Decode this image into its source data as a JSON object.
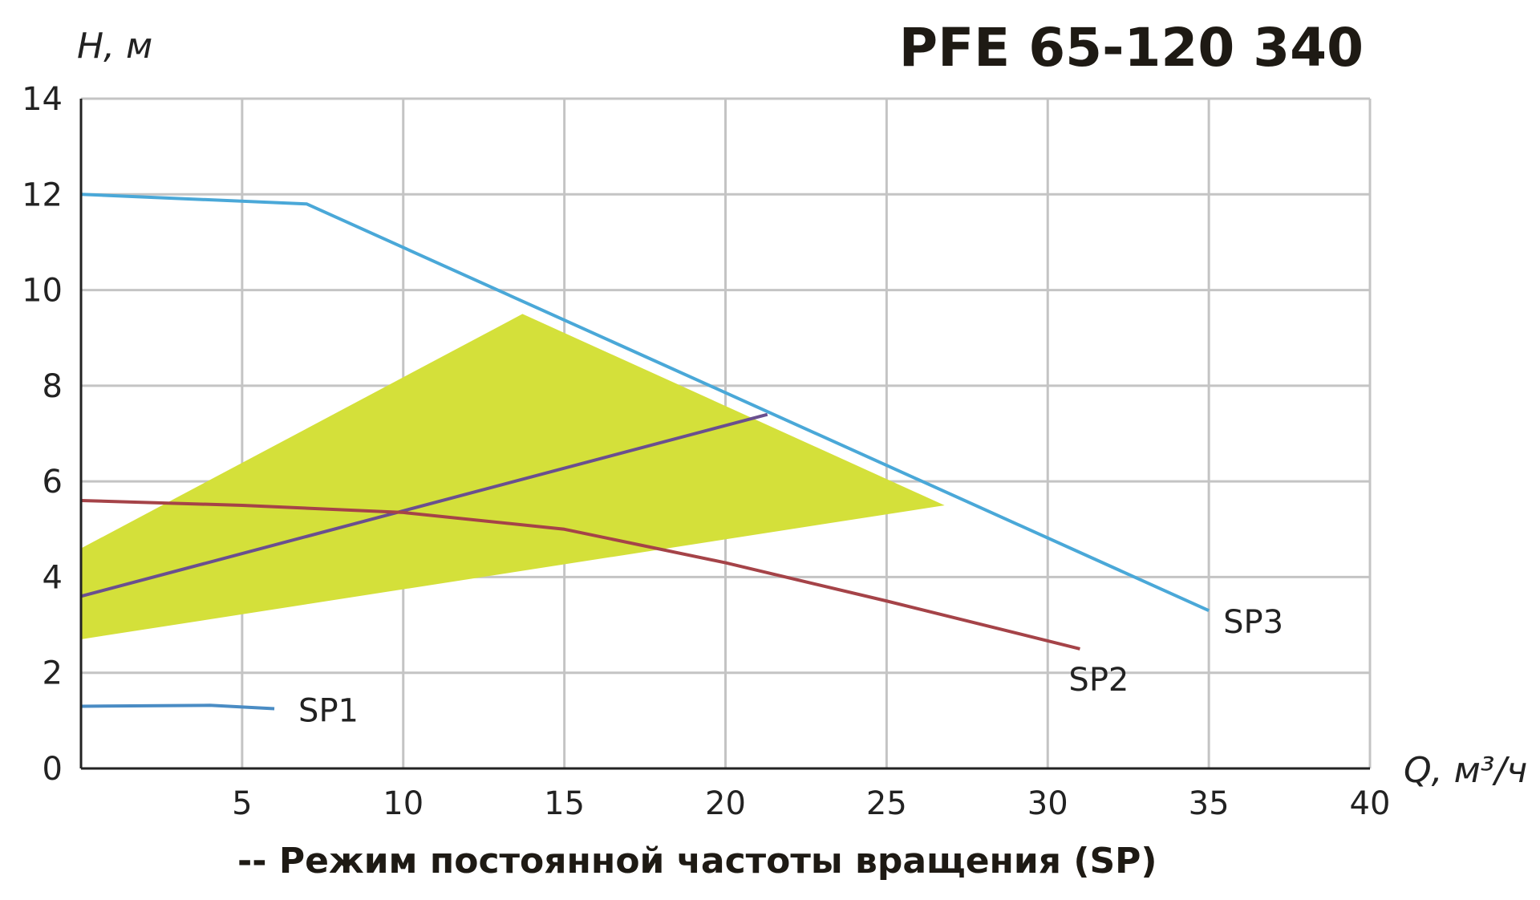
{
  "chart_data": {
    "type": "line",
    "title": "PFE 65-120 340",
    "xlabel": "Q, м³/ч",
    "ylabel": "H, м",
    "xlim": [
      0,
      40
    ],
    "ylim": [
      0,
      14
    ],
    "xticks": [
      5,
      10,
      15,
      20,
      25,
      30,
      35,
      40
    ],
    "yticks": [
      0,
      2,
      4,
      6,
      8,
      10,
      12,
      14
    ],
    "grid": true,
    "footnote": "-- Режим постоянной частоты вращения (SP)",
    "series": [
      {
        "name": "SP3",
        "color": "#4aa8d8",
        "points": [
          [
            0,
            12.0
          ],
          [
            7,
            11.8
          ],
          [
            35,
            3.3
          ]
        ]
      },
      {
        "name": "SP2",
        "color": "#a54348",
        "points": [
          [
            0,
            5.6
          ],
          [
            5,
            5.5
          ],
          [
            10,
            5.35
          ],
          [
            15,
            5.0
          ],
          [
            20,
            4.3
          ],
          [
            25,
            3.5
          ],
          [
            31,
            2.5
          ]
        ]
      },
      {
        "name": "SP1",
        "color": "#4a8cc4",
        "points": [
          [
            0,
            1.3
          ],
          [
            4,
            1.32
          ],
          [
            6,
            1.25
          ]
        ]
      }
    ],
    "system_line": {
      "color": "#6a4f8f",
      "points": [
        [
          0,
          3.6
        ],
        [
          21.3,
          7.4
        ]
      ]
    },
    "operating_area": {
      "color": "#d4e03a",
      "points": [
        [
          0,
          4.6
        ],
        [
          13.7,
          9.5
        ],
        [
          26.8,
          5.5
        ],
        [
          0,
          2.7
        ]
      ]
    }
  }
}
